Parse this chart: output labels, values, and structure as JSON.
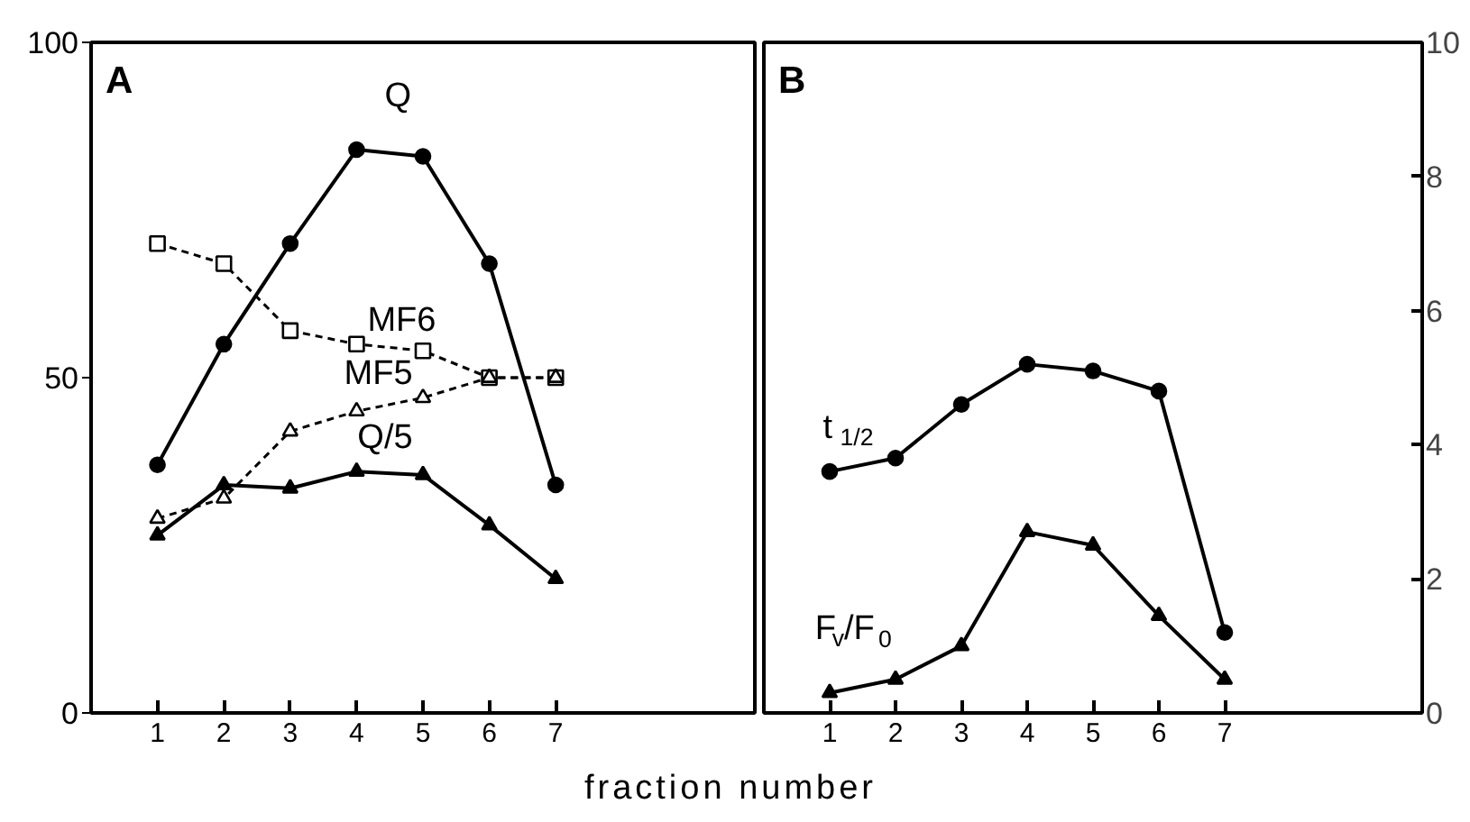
{
  "chart_data": [
    {
      "type": "line",
      "title": "A",
      "xlabel": "fraction number",
      "x": [
        1,
        2,
        3,
        4,
        5,
        6,
        7
      ],
      "xlim": [
        0,
        10
      ],
      "xticks": [
        1,
        2,
        3,
        4,
        5,
        6,
        7
      ],
      "ylim": [
        0,
        100
      ],
      "yticks": [
        0,
        50,
        100
      ],
      "grid": false,
      "series": [
        {
          "name": "Q",
          "color": "#000000",
          "marker": "circle",
          "line_style": "solid",
          "values": [
            37,
            55,
            70,
            84,
            83,
            67,
            34
          ]
        },
        {
          "name": "MF6",
          "color": "#000000",
          "marker": "square",
          "line_style": "dashed",
          "values": [
            70,
            67,
            57,
            55,
            54,
            50,
            50
          ]
        },
        {
          "name": "MF5",
          "color": "#000000",
          "marker": "triangle",
          "line_style": "dashed",
          "values": [
            29,
            32,
            42,
            45,
            47,
            50,
            50
          ]
        },
        {
          "name": "Q/5",
          "color": "#000000",
          "marker": "triangle",
          "line_style": "solid",
          "values": [
            26.5,
            34,
            33.5,
            36,
            35.5,
            28,
            20
          ]
        }
      ]
    },
    {
      "type": "line",
      "title": "B",
      "x": [
        1,
        2,
        3,
        4,
        5,
        6,
        7
      ],
      "xlim": [
        0,
        10
      ],
      "xticks": [
        1,
        2,
        3,
        4,
        5,
        6,
        7
      ],
      "y2lim": [
        0,
        10
      ],
      "y2ticks": [
        0,
        2,
        4,
        6,
        8,
        10
      ],
      "grid": false,
      "series": [
        {
          "name": "t$_{1/2}$",
          "color": "#000000",
          "marker": "circle",
          "line_style": "solid",
          "axis": "y2",
          "values": [
            3.6,
            3.8,
            4.6,
            5.2,
            5.1,
            4.8,
            1.2
          ]
        },
        {
          "name": "F$_{v}$/F$_{0}$",
          "color": "#000000",
          "marker": "triangle",
          "line_style": "solid",
          "axis": "y2",
          "values": [
            0.3,
            0.5,
            1.0,
            2.7,
            2.5,
            1.45,
            0.5
          ]
        }
      ]
    }
  ]
}
